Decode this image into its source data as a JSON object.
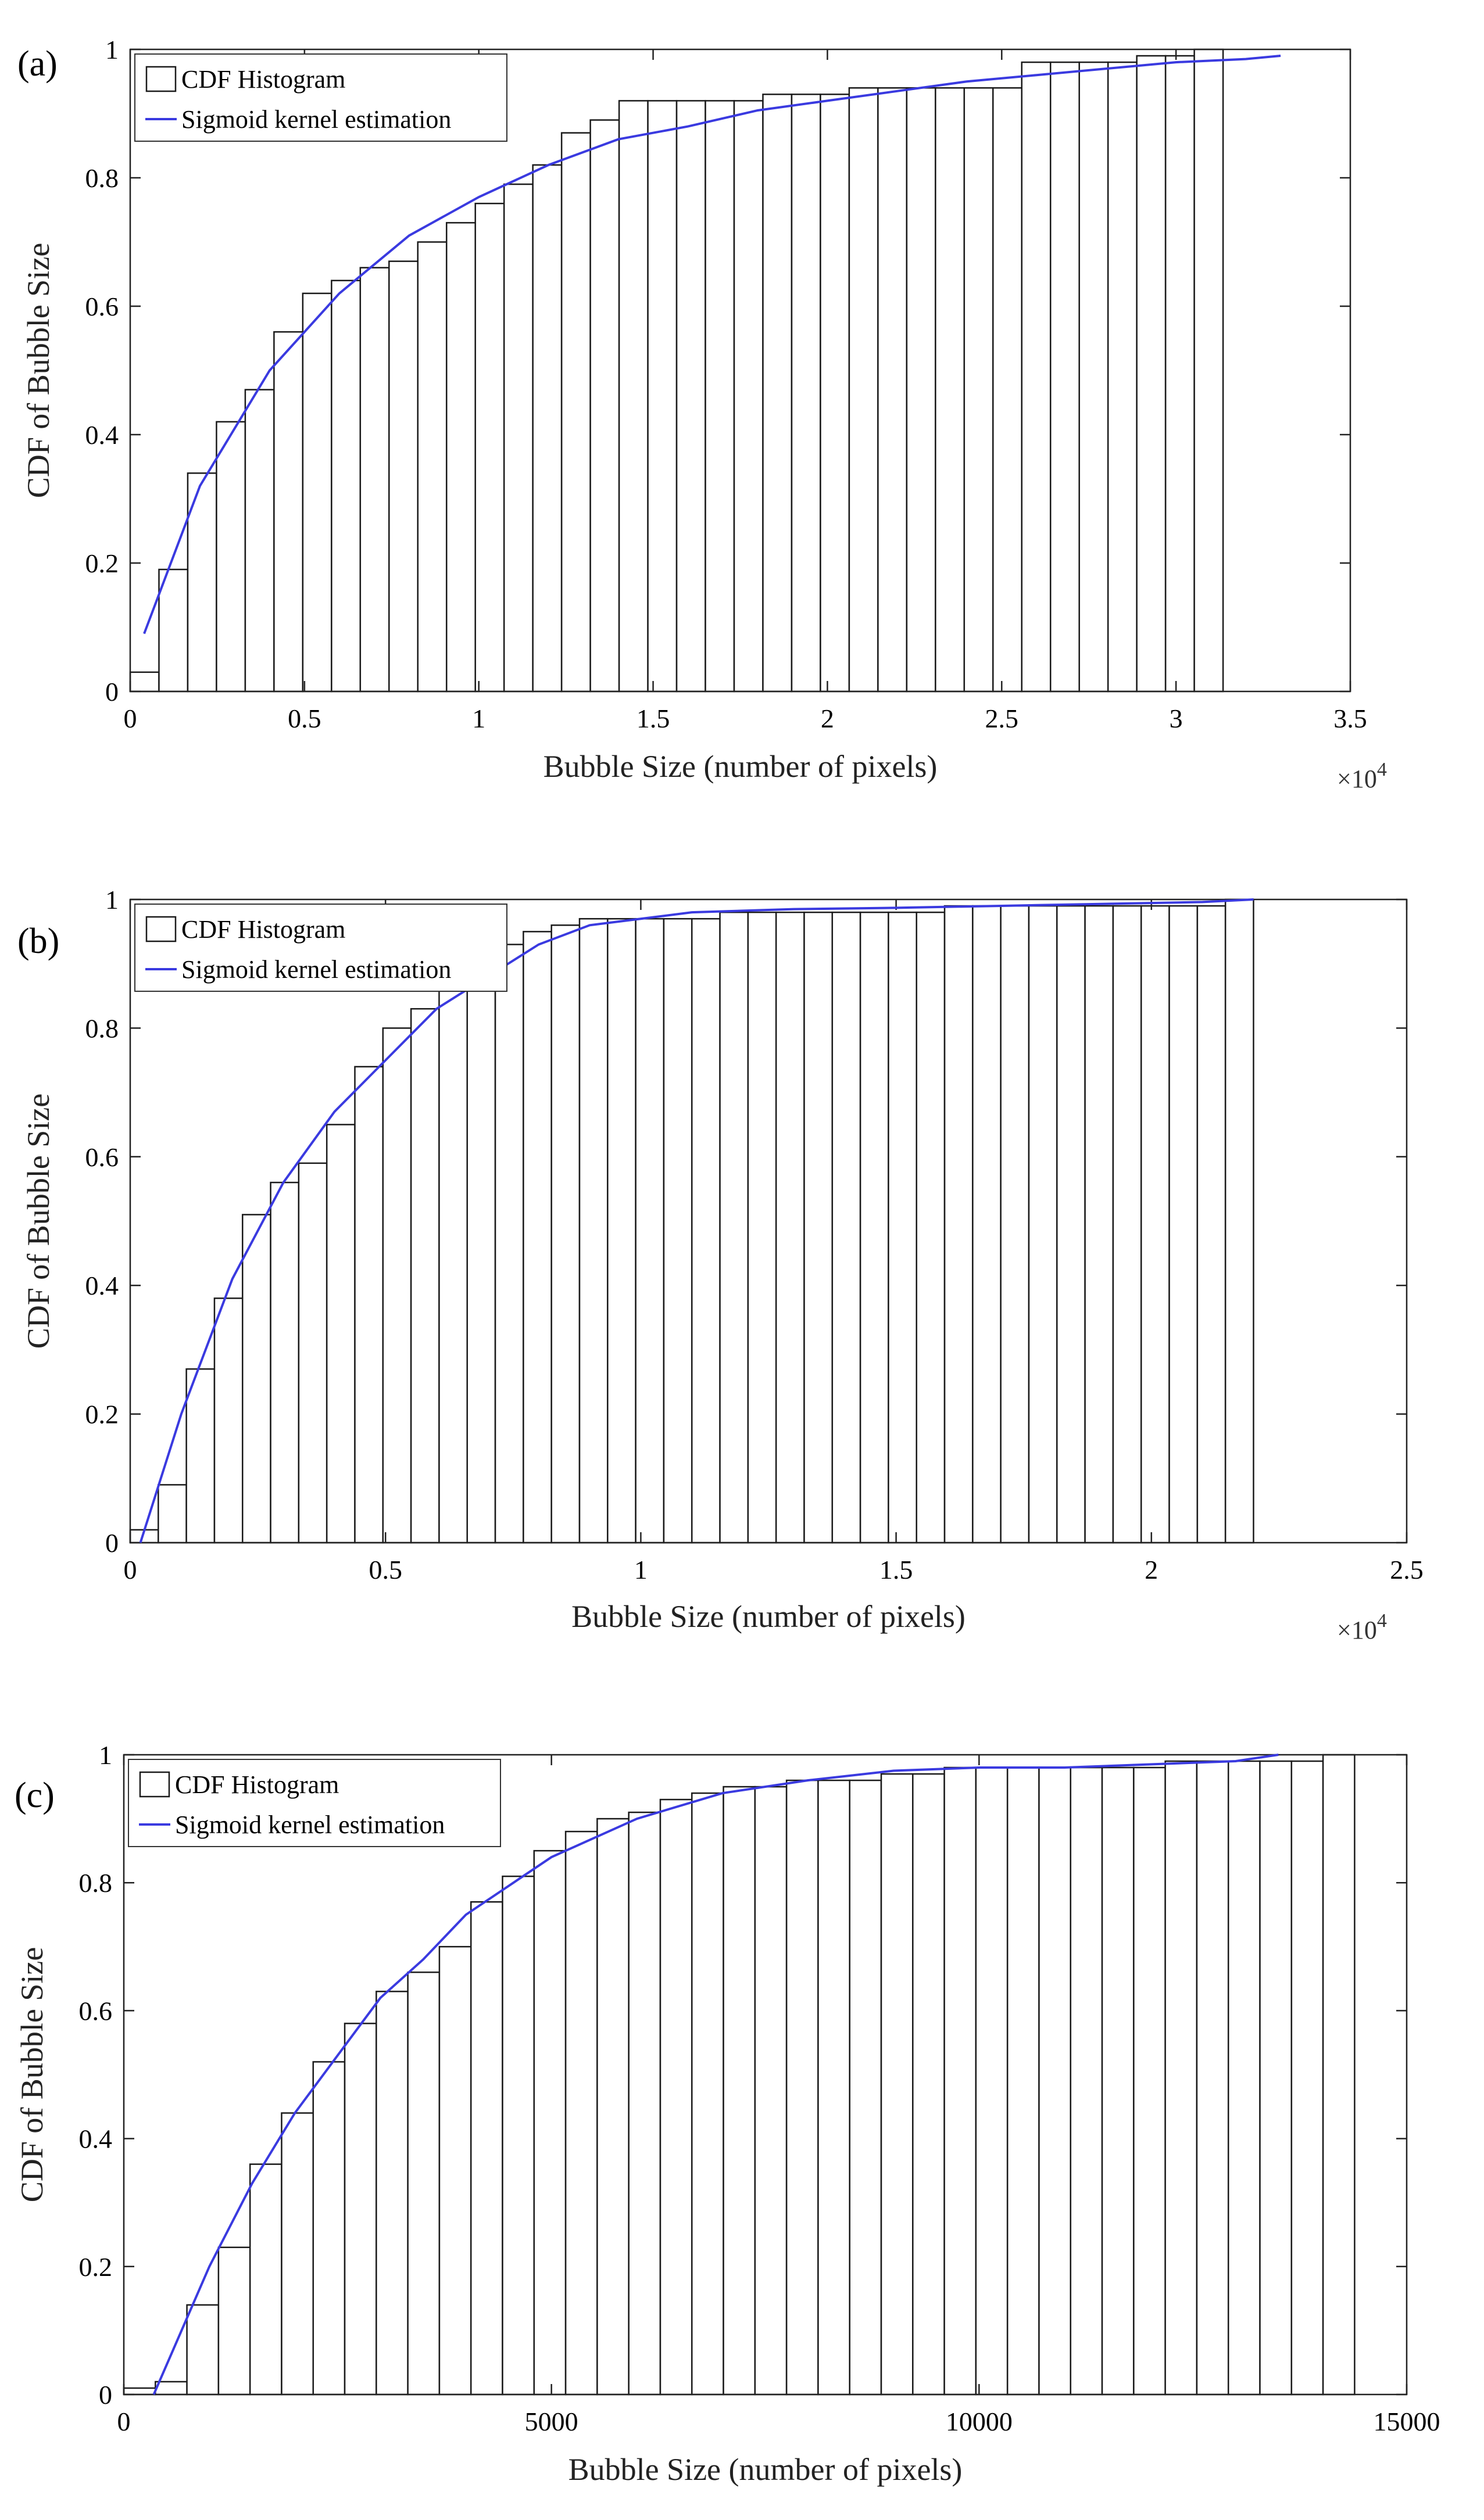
{
  "chart_data": [
    {
      "type": "bar",
      "panel_label": "(a)",
      "xlabel": "Bubble Size (number of pixels)",
      "ylabel": "CDF of Bubble Size",
      "xlim": [
        0,
        3.5
      ],
      "ylim": [
        0,
        1
      ],
      "x_multiplier": "×10",
      "x_exponent": "4",
      "xticks": [
        0,
        0.5,
        1,
        1.5,
        2,
        2.5,
        3,
        3.5
      ],
      "xtick_labels": [
        "0",
        "0.5",
        "1",
        "1.5",
        "2",
        "2.5",
        "3",
        "3.5"
      ],
      "yticks": [
        0,
        0.2,
        0.4,
        0.6,
        0.8,
        1
      ],
      "ytick_labels": [
        "0",
        "0.2",
        "0.4",
        "0.6",
        "0.8",
        "1"
      ],
      "legend": {
        "position": "top-left",
        "entries": [
          "CDF Histogram",
          "Sigmoid kernel estimation"
        ]
      },
      "histogram": {
        "name": "CDF Histogram",
        "bin_start": 0,
        "bin_width": 0.0825,
        "values": [
          0.03,
          0.19,
          0.34,
          0.42,
          0.47,
          0.56,
          0.62,
          0.64,
          0.66,
          0.67,
          0.7,
          0.73,
          0.76,
          0.79,
          0.82,
          0.87,
          0.89,
          0.92,
          0.92,
          0.92,
          0.92,
          0.92,
          0.93,
          0.93,
          0.93,
          0.94,
          0.94,
          0.94,
          0.94,
          0.94,
          0.94,
          0.98,
          0.98,
          0.98,
          0.98,
          0.99,
          0.99,
          1.0
        ]
      },
      "curve": {
        "name": "Sigmoid kernel estimation",
        "color": "#3a3ae0",
        "x": [
          0.04,
          0.2,
          0.4,
          0.6,
          0.8,
          1.0,
          1.2,
          1.4,
          1.6,
          1.8,
          2.0,
          2.2,
          2.4,
          2.6,
          2.8,
          3.0,
          3.2,
          3.3
        ],
        "y": [
          0.09,
          0.32,
          0.5,
          0.62,
          0.71,
          0.77,
          0.82,
          0.86,
          0.88,
          0.905,
          0.92,
          0.935,
          0.95,
          0.96,
          0.97,
          0.98,
          0.985,
          0.99
        ]
      }
    },
    {
      "type": "bar",
      "panel_label": "(b)",
      "xlabel": "Bubble Size (number of pixels)",
      "ylabel": "CDF of Bubble Size",
      "xlim": [
        0,
        2.5
      ],
      "ylim": [
        0,
        1
      ],
      "x_multiplier": "×10",
      "x_exponent": "4",
      "xticks": [
        0,
        0.5,
        1,
        1.5,
        2,
        2.5
      ],
      "xtick_labels": [
        "0",
        "0.5",
        "1",
        "1.5",
        "2",
        "2.5"
      ],
      "yticks": [
        0,
        0.2,
        0.4,
        0.6,
        0.8,
        1
      ],
      "ytick_labels": [
        "0",
        "0.2",
        "0.4",
        "0.6",
        "0.8",
        "1"
      ],
      "legend": {
        "position": "top-left",
        "entries": [
          "CDF Histogram",
          "Sigmoid kernel estimation"
        ]
      },
      "histogram": {
        "name": "CDF Histogram",
        "bin_start": 0,
        "bin_width": 0.055,
        "values": [
          0.02,
          0.09,
          0.27,
          0.38,
          0.51,
          0.56,
          0.59,
          0.65,
          0.74,
          0.8,
          0.83,
          0.87,
          0.89,
          0.93,
          0.95,
          0.96,
          0.97,
          0.97,
          0.97,
          0.97,
          0.97,
          0.98,
          0.98,
          0.98,
          0.98,
          0.98,
          0.98,
          0.98,
          0.98,
          0.99,
          0.99,
          0.99,
          0.99,
          0.99,
          0.99,
          0.99,
          0.99,
          0.99,
          0.99,
          1.0
        ]
      },
      "curve": {
        "name": "Sigmoid kernel estimation",
        "color": "#3a3ae0",
        "x": [
          0.02,
          0.1,
          0.2,
          0.3,
          0.4,
          0.5,
          0.6,
          0.7,
          0.8,
          0.9,
          1.0,
          1.1,
          1.3,
          1.5,
          1.7,
          1.9,
          2.1,
          2.2
        ],
        "y": [
          0.0,
          0.2,
          0.41,
          0.56,
          0.67,
          0.75,
          0.83,
          0.88,
          0.93,
          0.96,
          0.97,
          0.98,
          0.985,
          0.987,
          0.99,
          0.993,
          0.996,
          1.0
        ]
      }
    },
    {
      "type": "bar",
      "panel_label": "(c)",
      "xlabel": "Bubble Size (number of pixels)",
      "ylabel": "CDF of Bubble Size",
      "xlim": [
        0,
        15000
      ],
      "ylim": [
        0,
        1
      ],
      "x_multiplier": "",
      "x_exponent": "",
      "xticks": [
        0,
        5000,
        10000,
        15000
      ],
      "xtick_labels": [
        "0",
        "5000",
        "10000",
        "15000"
      ],
      "yticks": [
        0,
        0.2,
        0.4,
        0.6,
        0.8,
        1
      ],
      "ytick_labels": [
        "0",
        "0.2",
        "0.4",
        "0.6",
        "0.8",
        "1"
      ],
      "legend": {
        "position": "top-left",
        "entries": [
          "CDF Histogram",
          "Sigmoid kernel estimation"
        ]
      },
      "histogram": {
        "name": "CDF Histogram",
        "bin_start": 0,
        "bin_width": 369,
        "values": [
          0.01,
          0.02,
          0.14,
          0.23,
          0.36,
          0.44,
          0.52,
          0.58,
          0.63,
          0.66,
          0.7,
          0.77,
          0.81,
          0.85,
          0.88,
          0.9,
          0.91,
          0.93,
          0.94,
          0.95,
          0.95,
          0.96,
          0.96,
          0.96,
          0.97,
          0.97,
          0.98,
          0.98,
          0.98,
          0.98,
          0.98,
          0.98,
          0.98,
          0.99,
          0.99,
          0.99,
          0.99,
          0.99,
          1.0
        ]
      },
      "curve": {
        "name": "Sigmoid kernel estimation",
        "color": "#3a3ae0",
        "x": [
          350,
          1000,
          1500,
          2000,
          2500,
          3000,
          3500,
          4000,
          5000,
          6000,
          7000,
          8000,
          9000,
          10000,
          11000,
          12000,
          13000,
          13500
        ],
        "y": [
          0.0,
          0.2,
          0.33,
          0.44,
          0.53,
          0.62,
          0.68,
          0.75,
          0.84,
          0.9,
          0.94,
          0.96,
          0.975,
          0.98,
          0.98,
          0.985,
          0.99,
          1.0
        ]
      }
    }
  ]
}
